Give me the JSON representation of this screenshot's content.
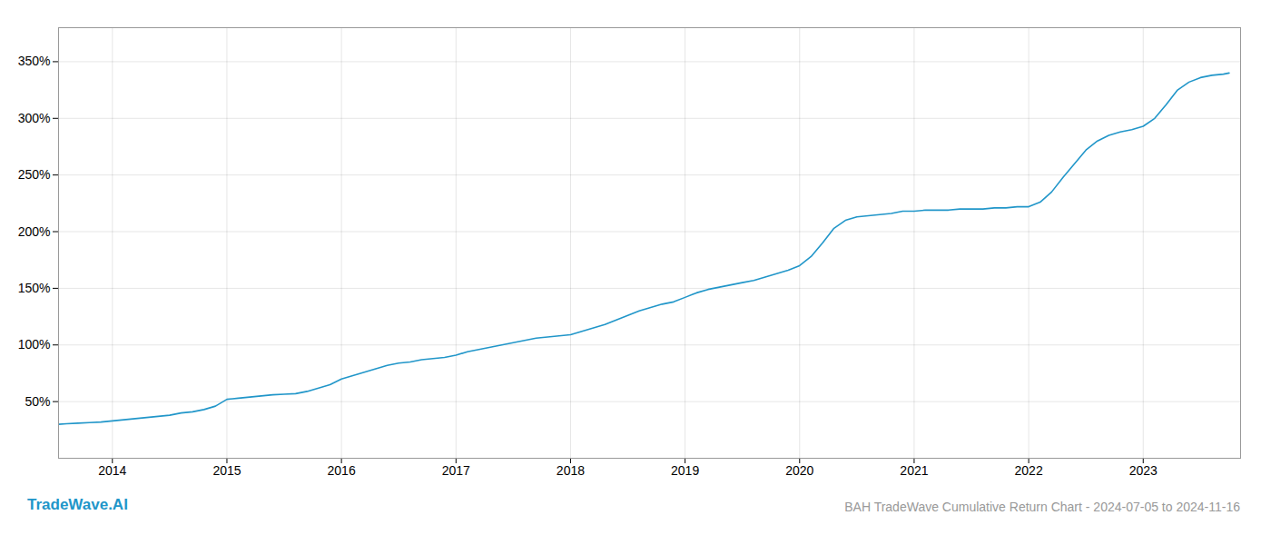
{
  "chart_data": {
    "type": "line",
    "title": "BAH TradeWave Cumulative Return Chart - 2024-07-05 to 2024-11-16",
    "annotations": [
      "TradeWave.AI"
    ],
    "color": "#2196C9",
    "grid": true,
    "x": [
      2013.53,
      2013.6,
      2013.7,
      2013.8,
      2013.9,
      2014.0,
      2014.1,
      2014.2,
      2014.3,
      2014.4,
      2014.5,
      2014.6,
      2014.7,
      2014.8,
      2014.9,
      2015.0,
      2015.1,
      2015.2,
      2015.3,
      2015.4,
      2015.5,
      2015.6,
      2015.7,
      2015.8,
      2015.9,
      2016.0,
      2016.1,
      2016.2,
      2016.3,
      2016.4,
      2016.5,
      2016.6,
      2016.7,
      2016.8,
      2016.9,
      2017.0,
      2017.1,
      2017.2,
      2017.3,
      2017.4,
      2017.5,
      2017.6,
      2017.7,
      2017.8,
      2017.9,
      2018.0,
      2018.1,
      2018.2,
      2018.3,
      2018.4,
      2018.5,
      2018.6,
      2018.7,
      2018.8,
      2018.9,
      2019.0,
      2019.1,
      2019.2,
      2019.3,
      2019.4,
      2019.5,
      2019.6,
      2019.7,
      2019.8,
      2019.9,
      2020.0,
      2020.1,
      2020.2,
      2020.3,
      2020.4,
      2020.5,
      2020.6,
      2020.7,
      2020.8,
      2020.9,
      2021.0,
      2021.1,
      2021.2,
      2021.3,
      2021.4,
      2021.5,
      2021.6,
      2021.7,
      2021.8,
      2021.9,
      2022.0,
      2022.1,
      2022.2,
      2022.3,
      2022.4,
      2022.5,
      2022.6,
      2022.7,
      2022.8,
      2022.9,
      2023.0,
      2023.1,
      2023.2,
      2023.3,
      2023.4,
      2023.5,
      2023.6,
      2023.7,
      2023.75
    ],
    "values": [
      30,
      30.5,
      31,
      31.5,
      32,
      33,
      34,
      35,
      36,
      37,
      38,
      40,
      41,
      43,
      46,
      52,
      53,
      54,
      55,
      56,
      56.5,
      57,
      59,
      62,
      65,
      70,
      73,
      76,
      79,
      82,
      84,
      85,
      87,
      88,
      89,
      91,
      94,
      96,
      98,
      100,
      102,
      104,
      106,
      107,
      108,
      109,
      112,
      115,
      118,
      122,
      126,
      130,
      133,
      136,
      138,
      142,
      146,
      149,
      151,
      153,
      155,
      157,
      160,
      163,
      166,
      170,
      178,
      190,
      203,
      210,
      213,
      214,
      215,
      216,
      218,
      218,
      219,
      219,
      219,
      220,
      220,
      220,
      221,
      221,
      222,
      222,
      226,
      235,
      248,
      260,
      272,
      280,
      285,
      288,
      290,
      293,
      300,
      312,
      325,
      332,
      336,
      338,
      339,
      340
    ],
    "xlim": [
      2013.53,
      2023.85
    ],
    "xticks": [
      2014,
      2015,
      2016,
      2017,
      2018,
      2019,
      2020,
      2021,
      2022,
      2023
    ],
    "ylim": [
      0,
      380
    ],
    "yticks": [
      {
        "value": 50,
        "label": "50%"
      },
      {
        "value": 100,
        "label": "100%"
      },
      {
        "value": 150,
        "label": "150%"
      },
      {
        "value": 200,
        "label": "200%"
      },
      {
        "value": 250,
        "label": "250%"
      },
      {
        "value": 300,
        "label": "300%"
      },
      {
        "value": 350,
        "label": "350%"
      }
    ]
  }
}
